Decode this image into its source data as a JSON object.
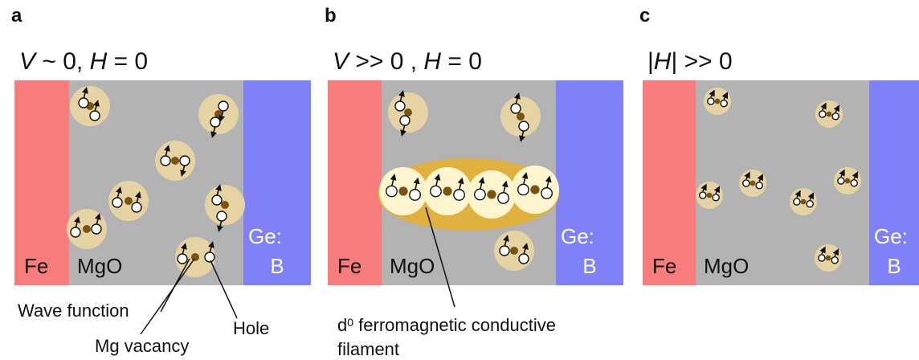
{
  "panels": [
    {
      "label": "a",
      "title": [
        {
          "text": "V",
          "italic": true
        },
        {
          "text": " ~ 0, ",
          "italic": false
        },
        {
          "text": "H",
          "italic": true
        },
        {
          "text": " = 0",
          "italic": false
        }
      ],
      "layers": {
        "left": "Fe",
        "middle": "MgO",
        "right_top": "Ge:",
        "right_bottom": "B"
      }
    },
    {
      "label": "b",
      "title": [
        {
          "text": "V",
          "italic": true
        },
        {
          "text": " >> 0 , ",
          "italic": false
        },
        {
          "text": "H",
          "italic": true
        },
        {
          "text": " = 0",
          "italic": false
        }
      ],
      "layers": {
        "left": "Fe",
        "middle": "MgO",
        "right_top": "Ge:",
        "right_bottom": "B"
      }
    },
    {
      "label": "c",
      "title": [
        {
          "text": "|",
          "italic": false
        },
        {
          "text": "H",
          "italic": true
        },
        {
          "text": "| >> 0",
          "italic": false
        }
      ],
      "layers": {
        "left": "Fe",
        "middle": "MgO",
        "right_top": "Ge:",
        "right_bottom": "B"
      }
    }
  ],
  "annotations": {
    "wave_function": "Wave function",
    "mg_vacancy": "Mg vacancy",
    "hole": "Hole",
    "filament": [
      [
        {
          "text": "d",
          "sup": false
        },
        {
          "text": "0",
          "sup": true
        },
        {
          "text": " ferromagnetic conductive",
          "sup": false
        }
      ],
      [
        {
          "text": "filament",
          "sup": false
        }
      ]
    ]
  }
}
